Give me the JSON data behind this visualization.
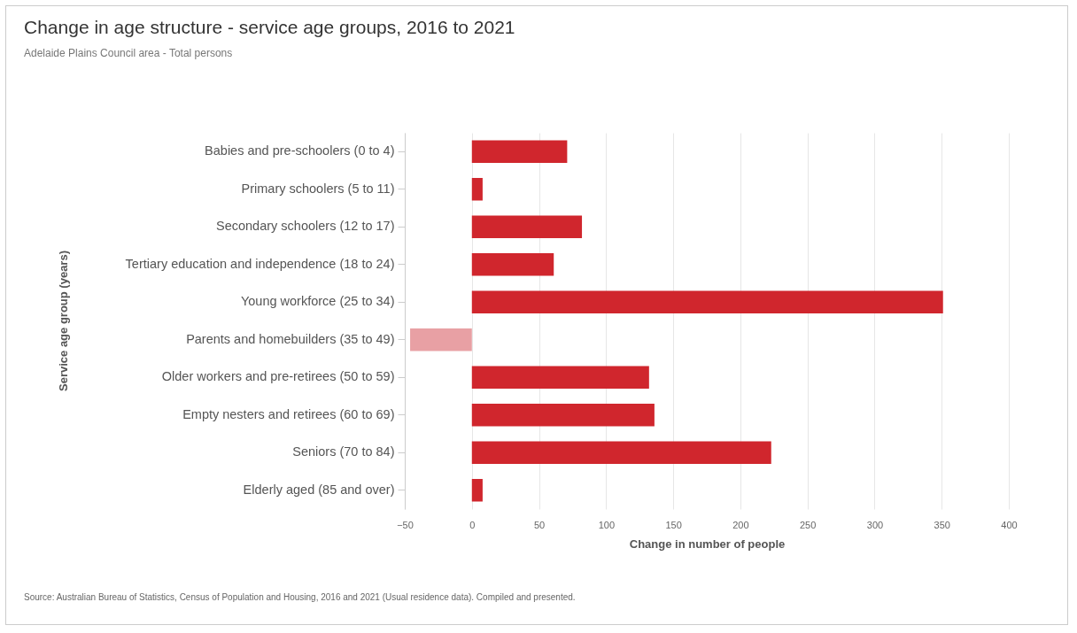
{
  "chart_data": {
    "type": "bar",
    "orientation": "horizontal",
    "title": "Change in age structure - service age groups, 2016 to 2021",
    "subtitle": "Adelaide Plains Council area - Total persons",
    "xlabel": "Change in number of people",
    "ylabel": "Service age group (years)",
    "categories": [
      "Babies and pre-schoolers (0 to 4)",
      "Primary schoolers (5 to 11)",
      "Secondary schoolers (12 to 17)",
      "Tertiary education and independence (18 to 24)",
      "Young workforce (25 to 34)",
      "Parents and homebuilders (35 to 49)",
      "Older workers and pre-retirees (50 to 59)",
      "Empty nesters and retirees (60 to 69)",
      "Seniors (70 to 84)",
      "Elderly aged (85 and over)"
    ],
    "values": [
      71,
      8,
      82,
      61,
      351,
      -46,
      132,
      136,
      223,
      8
    ],
    "colors": [
      "#d0262d",
      "#d0262d",
      "#d0262d",
      "#d0262d",
      "#d0262d",
      "#e8a0a4",
      "#d0262d",
      "#d0262d",
      "#d0262d",
      "#d0262d"
    ],
    "xlim": [
      -50,
      400
    ],
    "xticks": [
      -50,
      0,
      50,
      100,
      150,
      200,
      250,
      300,
      350,
      400
    ],
    "grid": "x",
    "annotations": [
      "Source: Australian Bureau of Statistics, Census of Population and Housing, 2016 and 2021 (Usual residence data). Compiled and presented."
    ]
  }
}
